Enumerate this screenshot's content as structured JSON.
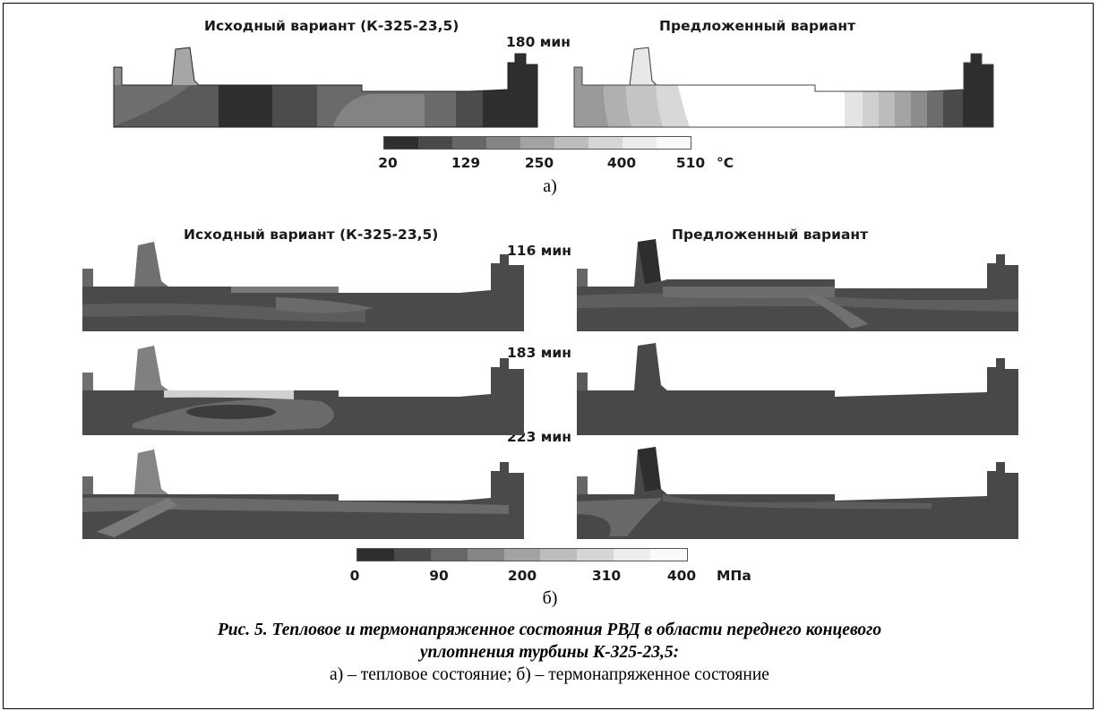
{
  "panel_a": {
    "left_title": "Исходный вариант (К-325-23,5)",
    "right_title": "Предложенный вариант",
    "time": "180 мин",
    "scale_ticks": [
      "20",
      "129",
      "250",
      "400",
      "510"
    ],
    "scale_unit": "°C",
    "sublabel": "а)"
  },
  "panel_b": {
    "left_title": "Исходный вариант (К-325-23,5)",
    "right_title": "Предложенный вариант",
    "times": [
      "116 мин",
      "183 мин",
      "223 мин"
    ],
    "scale_ticks": [
      "0",
      "90",
      "200",
      "310",
      "400"
    ],
    "scale_unit": "МПа",
    "sublabel": "б)"
  },
  "colorbar_colors": [
    "#2e2e2e",
    "#4a4a4a",
    "#676767",
    "#858585",
    "#a3a3a3",
    "#bdbdbd",
    "#d6d6d6",
    "#ececec",
    "#fafafa"
  ],
  "caption": {
    "line1": "Рис. 5. Тепловое и термонапряженное состояния РВД в области переднего концевого",
    "line2": "уплотнения турбины К-325-23,5:",
    "line3": "а) – тепловое состояние; б) – термонапряженное состояние"
  }
}
